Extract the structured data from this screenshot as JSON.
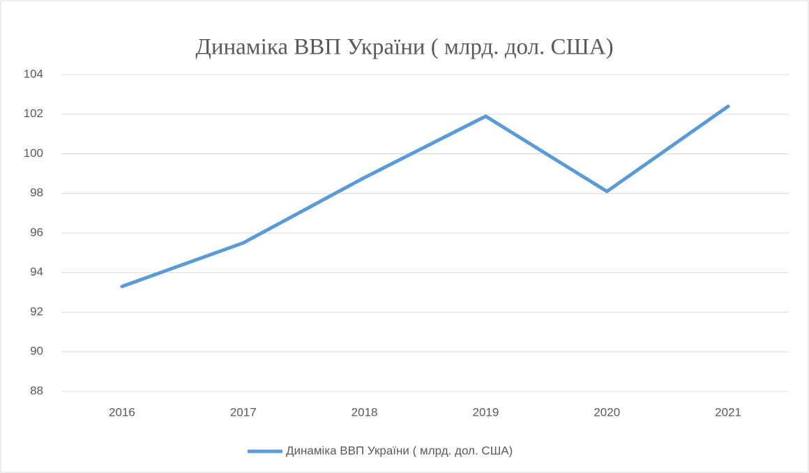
{
  "chart_data": {
    "type": "line",
    "title": "Динаміка ВВП України ( млрд. дол. США)",
    "categories": [
      "2016",
      "2017",
      "2018",
      "2019",
      "2020",
      "2021"
    ],
    "series": [
      {
        "name": "Динаміка ВВП України ( млрд. дол. США)",
        "color": "#5b9bd5",
        "values": [
          93.3,
          95.5,
          98.8,
          101.9,
          98.1,
          102.4
        ]
      }
    ],
    "ylim": [
      88,
      104
    ],
    "yticks": [
      88,
      90,
      92,
      94,
      96,
      98,
      100,
      102,
      104
    ],
    "grid": true,
    "legend": "bottom"
  }
}
